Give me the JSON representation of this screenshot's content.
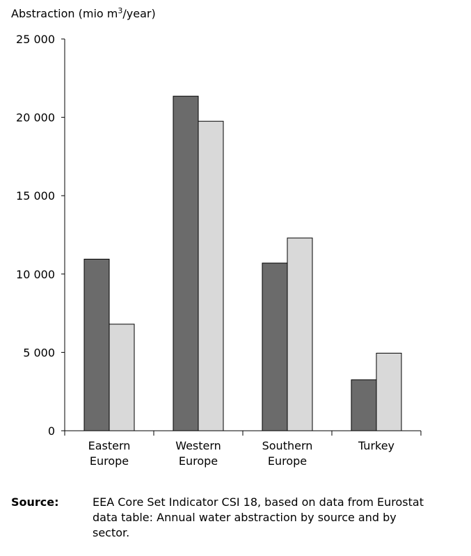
{
  "chart_data": {
    "type": "bar",
    "ylabel_prefix": "Abstraction (mio m",
    "ylabel_sup": "3",
    "ylabel_suffix": "/year)",
    "categories": [
      [
        "Eastern",
        "Europe"
      ],
      [
        "Western",
        "Europe"
      ],
      [
        "Southern",
        "Europe"
      ],
      [
        "Turkey"
      ]
    ],
    "series": [
      {
        "color": "#6b6b6b",
        "values": [
          10950,
          21350,
          10700,
          3250
        ]
      },
      {
        "color": "#d9d9d9",
        "values": [
          6800,
          19750,
          12300,
          4950
        ]
      }
    ],
    "ylim": [
      0,
      25000
    ],
    "yticks": [
      0,
      5000,
      10000,
      15000,
      20000,
      25000
    ],
    "ytick_labels": [
      "0",
      "5 000",
      "10 000",
      "15 000",
      "20 000",
      "25 000"
    ],
    "grid": false,
    "legend": "none"
  },
  "source": {
    "label": "Source:",
    "text": "EEA Core Set Indicator CSI 18, based on data from Eurostat data table: Annual water abstraction by source and by sector."
  }
}
